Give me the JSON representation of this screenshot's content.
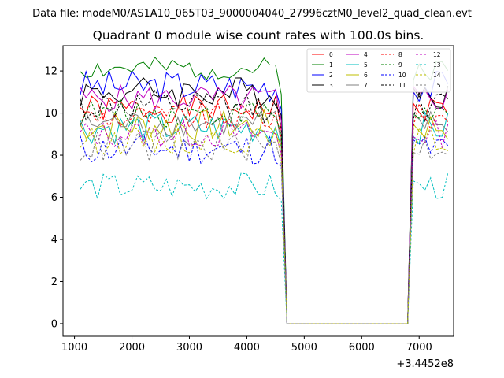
{
  "suptitle": "Data file: modeM0/AS1A10_065T03_9000004040_27996cztM0_level2_quad_clean.evt",
  "chart_data": {
    "type": "line",
    "title": "Quadrant 0 module wise count rates with 100.0s bins.",
    "xlabel": "",
    "ylabel": "",
    "x_offset_label": "+3.4452e8",
    "xlim": [
      800,
      7600
    ],
    "ylim": [
      -0.6,
      13.2
    ],
    "xticks": [
      1000,
      2000,
      3000,
      4000,
      5000,
      6000,
      7000
    ],
    "xtick_labels": [
      "1000",
      "2000",
      "3000",
      "4000",
      "5000",
      "6000",
      "7000"
    ],
    "yticks": [
      0,
      2,
      4,
      6,
      8,
      10,
      12
    ],
    "ytick_labels": [
      "0",
      "2",
      "4",
      "6",
      "8",
      "10",
      "12"
    ],
    "grid": false,
    "legend_placement": "top-right",
    "legend_columns": 4,
    "x_start": 1100,
    "x_step": 100,
    "x_end": 7500,
    "series": [
      {
        "name": "0",
        "color": "#ff0000",
        "dash": "solid",
        "level": 10.2,
        "amp": 0.3,
        "seed": 1
      },
      {
        "name": "1",
        "color": "#008000",
        "dash": "solid",
        "level": 12.1,
        "amp": 0.25,
        "seed": 2
      },
      {
        "name": "2",
        "color": "#0000ff",
        "dash": "solid",
        "level": 11.3,
        "amp": 0.35,
        "seed": 3
      },
      {
        "name": "3",
        "color": "#000000",
        "dash": "solid",
        "level": 11.0,
        "amp": 0.35,
        "seed": 4
      },
      {
        "name": "4",
        "color": "#bf00bf",
        "dash": "solid",
        "level": 10.7,
        "amp": 0.3,
        "seed": 5
      },
      {
        "name": "5",
        "color": "#00bfbf",
        "dash": "solid",
        "level": 9.3,
        "amp": 0.35,
        "seed": 6
      },
      {
        "name": "6",
        "color": "#bfbf00",
        "dash": "solid",
        "level": 9.4,
        "amp": 0.35,
        "seed": 7
      },
      {
        "name": "7",
        "color": "#808080",
        "dash": "solid",
        "level": 9.5,
        "amp": 0.3,
        "seed": 8
      },
      {
        "name": "8",
        "color": "#ff0000",
        "dash": "dashed",
        "level": 9.8,
        "amp": 0.3,
        "seed": 9
      },
      {
        "name": "9",
        "color": "#008000",
        "dash": "dashed",
        "level": 10.0,
        "amp": 0.3,
        "seed": 10
      },
      {
        "name": "10",
        "color": "#0000ff",
        "dash": "dashed",
        "level": 8.3,
        "amp": 0.35,
        "seed": 11
      },
      {
        "name": "11",
        "color": "#000000",
        "dash": "dashed",
        "level": 10.3,
        "amp": 0.35,
        "seed": 12
      },
      {
        "name": "12",
        "color": "#bf00bf",
        "dash": "dashed",
        "level": 9.0,
        "amp": 0.3,
        "seed": 13
      },
      {
        "name": "13",
        "color": "#00bfbf",
        "dash": "dashed",
        "level": 6.5,
        "amp": 0.3,
        "seed": 14
      },
      {
        "name": "14",
        "color": "#bfbf00",
        "dash": "dashed",
        "level": 8.7,
        "amp": 0.3,
        "seed": 15
      },
      {
        "name": "15",
        "color": "#808080",
        "dash": "dashed",
        "level": 8.4,
        "amp": 0.35,
        "seed": 16
      }
    ],
    "zero_interval": [
      4700,
      6800
    ]
  }
}
